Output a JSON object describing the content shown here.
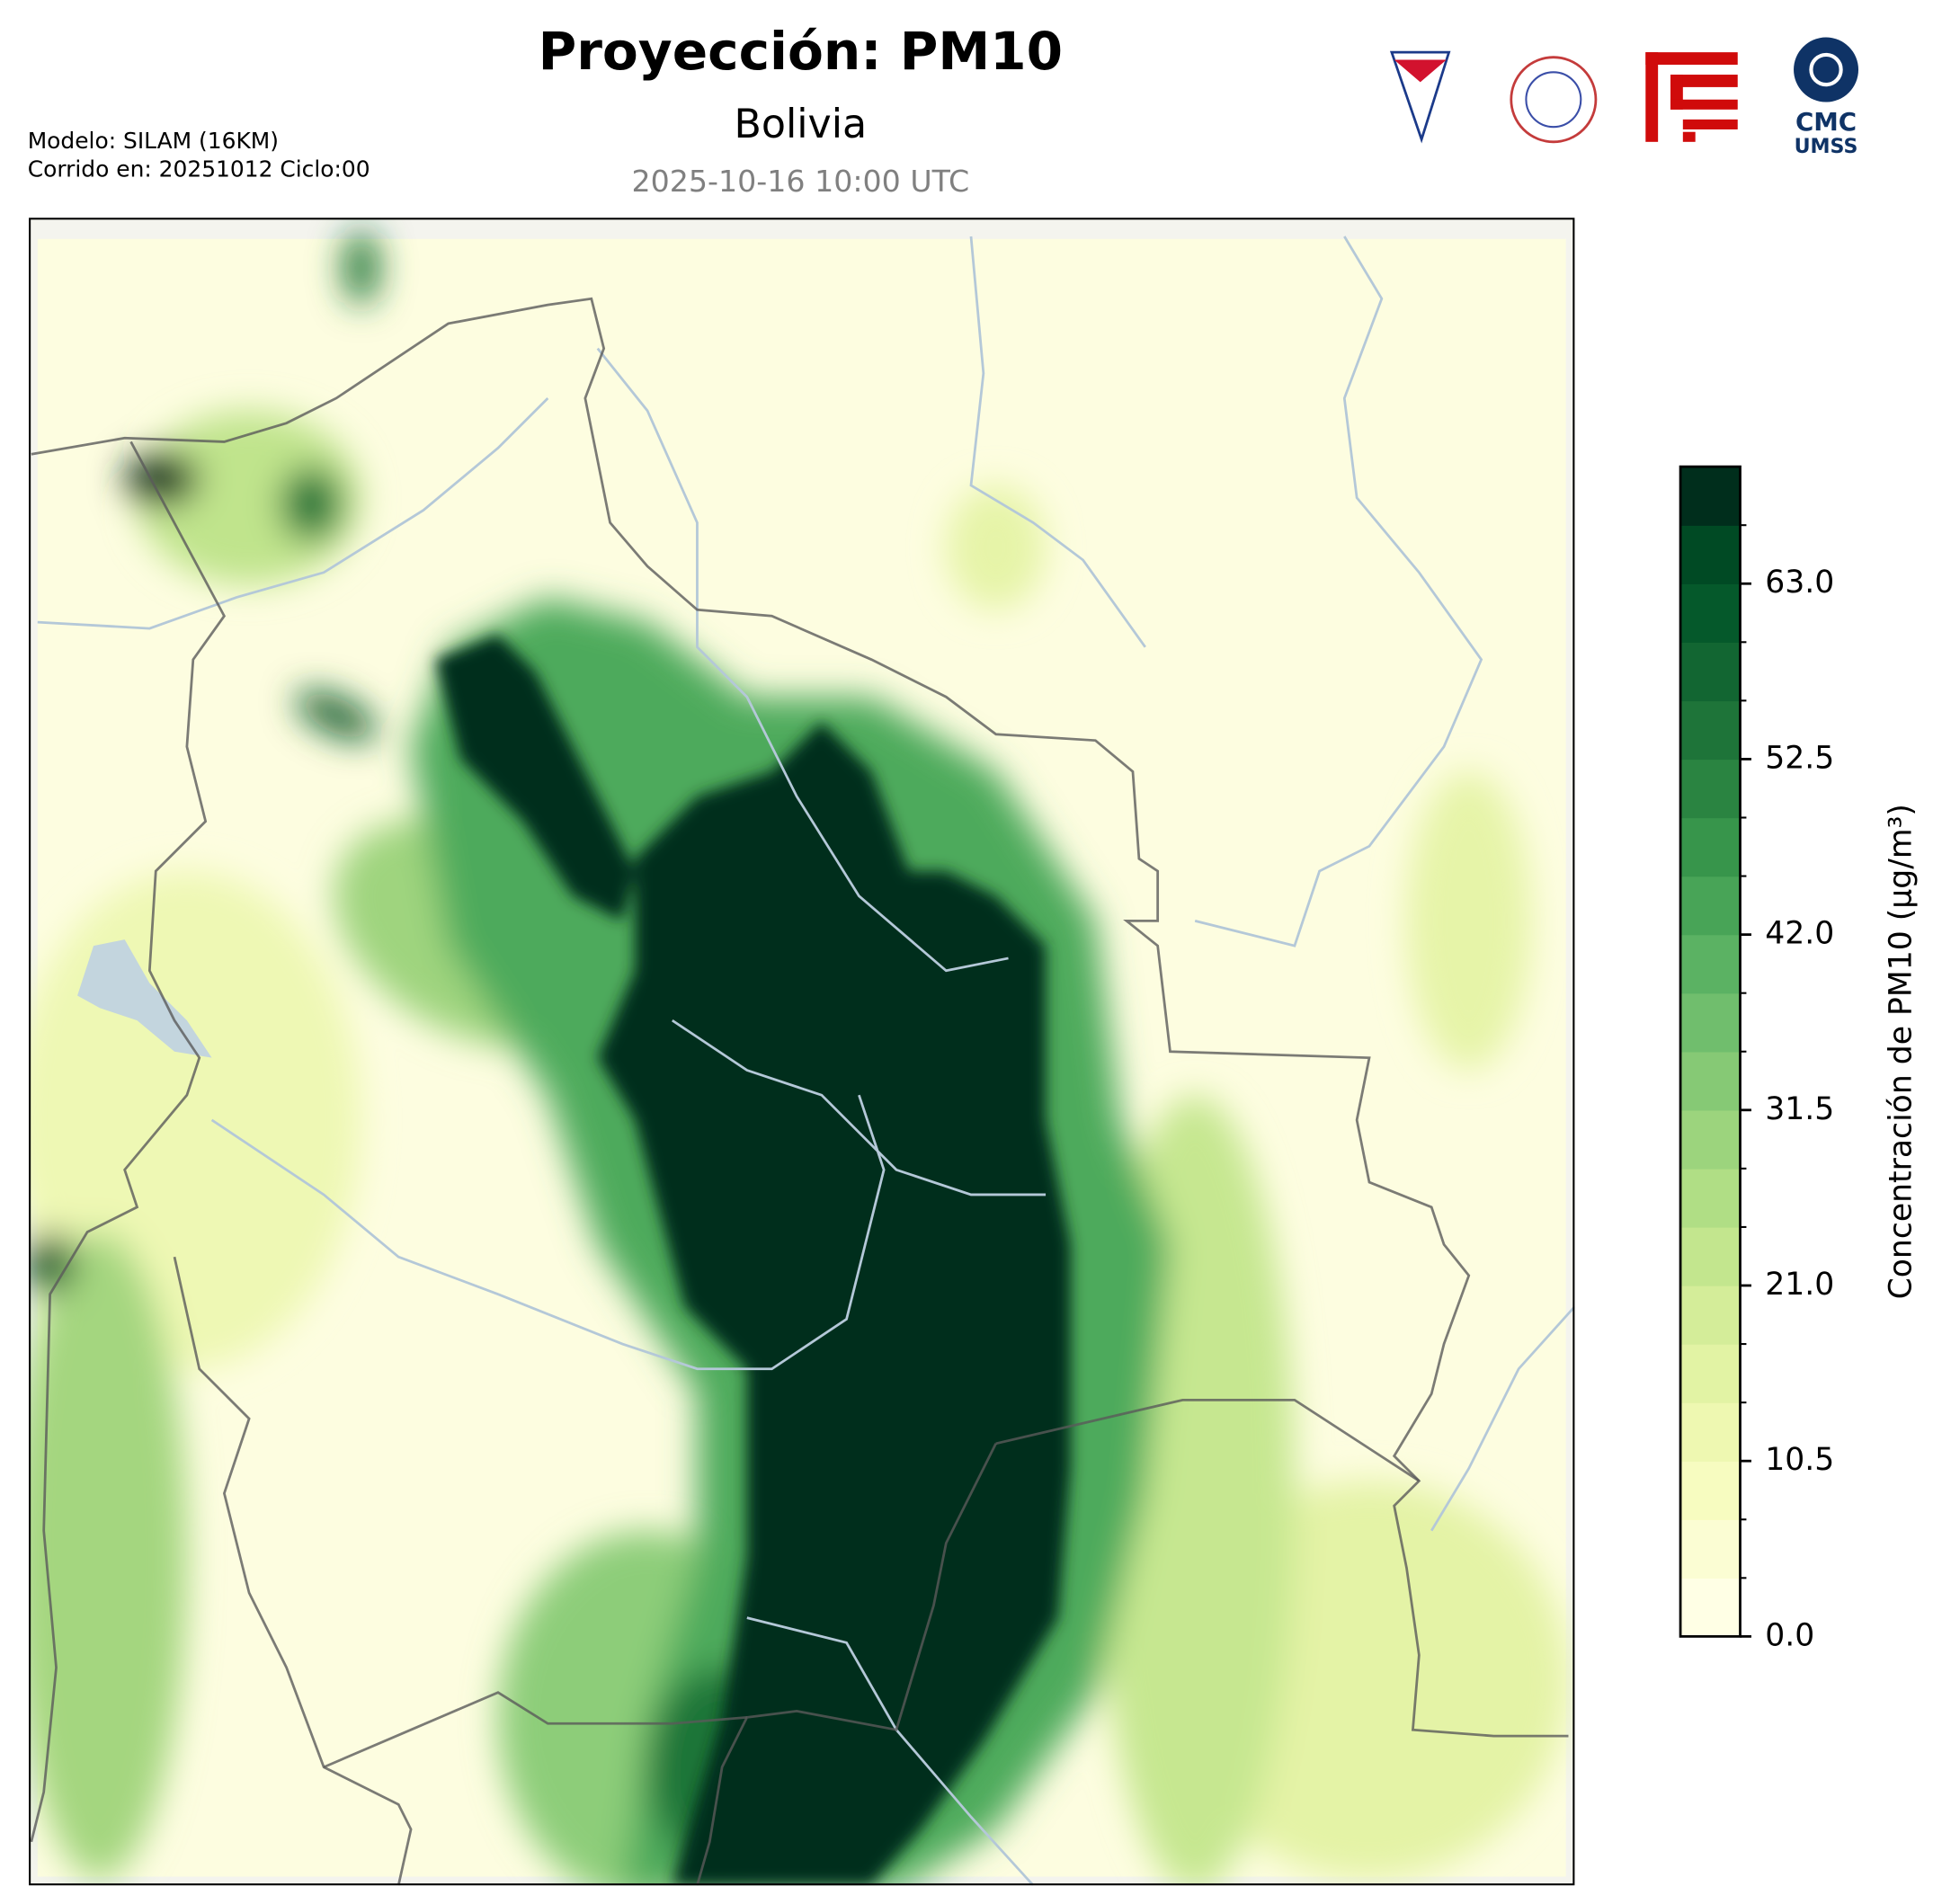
{
  "header": {
    "title": "Proyección: PM10",
    "subtitle": "Bolivia",
    "timestamp": "2025-10-16 10:00 UTC",
    "model": "Modelo: SILAM (16KM)",
    "run": "Corrido en: 20251012 Ciclo:00"
  },
  "logos": {
    "cmc": "CMC",
    "umss": "UMSS"
  },
  "colorbar": {
    "label": "Concentración de PM10 (μg/m³)",
    "lim": [
      0,
      70
    ],
    "ticks": [
      {
        "value": 0,
        "label": "0.0"
      },
      {
        "value": 10.5,
        "label": "10.5"
      },
      {
        "value": 21,
        "label": "21.0"
      },
      {
        "value": 31.5,
        "label": "31.5"
      },
      {
        "value": 42,
        "label": "42.0"
      },
      {
        "value": 52.5,
        "label": "52.5"
      },
      {
        "value": 63,
        "label": "63.0"
      }
    ],
    "colors": [
      "#ffffe5",
      "#fbfdd3",
      "#f7fcc0",
      "#eef8b1",
      "#e2f3a4",
      "#d4ed99",
      "#c3e68e",
      "#b0de85",
      "#9cd47d",
      "#86c975",
      "#70be6d",
      "#5bb263",
      "#48a457",
      "#37954b",
      "#2a8441",
      "#1e7439",
      "#126632",
      "#05592b",
      "#004a24",
      "#002e1c"
    ]
  }
}
